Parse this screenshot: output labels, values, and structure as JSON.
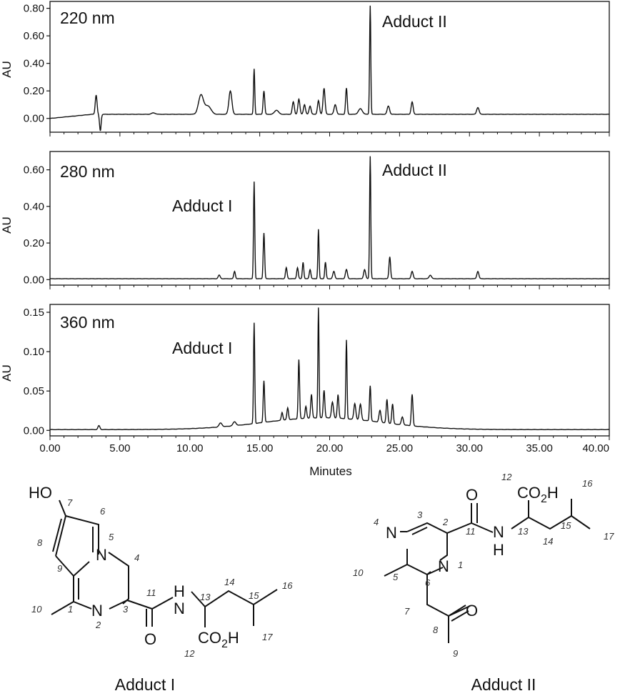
{
  "chart_data": [
    {
      "type": "line",
      "title": "220 nm",
      "ylabel": "AU",
      "xlabel": "",
      "xlim": [
        0,
        40
      ],
      "ylim": [
        -0.1,
        0.85
      ],
      "yticks": [
        "0.00",
        "0.20",
        "0.40",
        "0.60",
        "0.80"
      ],
      "ytick_values": [
        0,
        0.2,
        0.4,
        0.6,
        0.8
      ],
      "baseline": 0.03,
      "annotations": [
        {
          "text": "Adduct II",
          "x": 22.9
        }
      ],
      "peaks": [
        [
          3.3,
          0.14,
          0.09
        ],
        [
          3.6,
          -0.12,
          0.08
        ],
        [
          7.4,
          0.01,
          0.2
        ],
        [
          10.8,
          0.14,
          0.25
        ],
        [
          11.3,
          0.06,
          0.3
        ],
        [
          12.9,
          0.17,
          0.15
        ],
        [
          14.6,
          0.33,
          0.06
        ],
        [
          15.3,
          0.17,
          0.08
        ],
        [
          16.2,
          0.03,
          0.2
        ],
        [
          17.4,
          0.09,
          0.1
        ],
        [
          17.8,
          0.11,
          0.1
        ],
        [
          18.2,
          0.07,
          0.1
        ],
        [
          18.6,
          0.06,
          0.1
        ],
        [
          19.2,
          0.1,
          0.1
        ],
        [
          19.6,
          0.19,
          0.1
        ],
        [
          20.4,
          0.07,
          0.12
        ],
        [
          21.2,
          0.19,
          0.08
        ],
        [
          22.2,
          0.04,
          0.2
        ],
        [
          22.9,
          0.79,
          0.06
        ],
        [
          24.2,
          0.06,
          0.12
        ],
        [
          25.9,
          0.09,
          0.1
        ],
        [
          30.6,
          0.05,
          0.12
        ]
      ]
    },
    {
      "type": "line",
      "title": "280 nm",
      "ylabel": "AU",
      "xlabel": "",
      "xlim": [
        0,
        40
      ],
      "ylim": [
        -0.03,
        0.7
      ],
      "yticks": [
        "0.00",
        "0.20",
        "0.40",
        "0.60"
      ],
      "ytick_values": [
        0,
        0.2,
        0.4,
        0.6
      ],
      "baseline": 0.005,
      "annotations": [
        {
          "text": "Adduct I",
          "x": 14.6
        },
        {
          "text": "Adduct II",
          "x": 22.9
        }
      ],
      "peaks": [
        [
          12.1,
          0.02,
          0.1
        ],
        [
          13.2,
          0.04,
          0.08
        ],
        [
          14.6,
          0.53,
          0.06
        ],
        [
          15.3,
          0.25,
          0.07
        ],
        [
          16.9,
          0.06,
          0.08
        ],
        [
          17.7,
          0.06,
          0.08
        ],
        [
          18.1,
          0.09,
          0.07
        ],
        [
          18.6,
          0.05,
          0.08
        ],
        [
          19.2,
          0.27,
          0.06
        ],
        [
          19.7,
          0.09,
          0.07
        ],
        [
          20.3,
          0.04,
          0.1
        ],
        [
          21.2,
          0.05,
          0.1
        ],
        [
          22.5,
          0.05,
          0.1
        ],
        [
          22.9,
          0.67,
          0.06
        ],
        [
          24.3,
          0.12,
          0.08
        ],
        [
          25.9,
          0.04,
          0.1
        ],
        [
          27.2,
          0.02,
          0.12
        ],
        [
          30.6,
          0.04,
          0.1
        ]
      ]
    },
    {
      "type": "line",
      "title": "360 nm",
      "ylabel": "AU",
      "xlabel": "Minutes",
      "xlim": [
        0,
        40
      ],
      "ylim": [
        -0.007,
        0.16
      ],
      "yticks": [
        "0.00",
        "0.05",
        "0.10",
        "0.15"
      ],
      "ytick_values": [
        0,
        0.05,
        0.1,
        0.15
      ],
      "xticks": [
        "0.00",
        "5.00",
        "10.00",
        "15.00",
        "20.00",
        "25.00",
        "30.00",
        "35.00",
        "40.00"
      ],
      "xtick_values": [
        0,
        5,
        10,
        15,
        20,
        25,
        30,
        35,
        40
      ],
      "baseline": 0.001,
      "hump": {
        "center": 19.5,
        "height": 0.015,
        "width": 6
      },
      "annotations": [
        {
          "text": "Adduct I",
          "x": 14.6
        }
      ],
      "peaks": [
        [
          3.5,
          0.005,
          0.1
        ],
        [
          12.2,
          0.005,
          0.15
        ],
        [
          13.2,
          0.005,
          0.15
        ],
        [
          14.6,
          0.128,
          0.06
        ],
        [
          15.3,
          0.053,
          0.07
        ],
        [
          16.6,
          0.01,
          0.08
        ],
        [
          17.0,
          0.015,
          0.08
        ],
        [
          17.8,
          0.075,
          0.07
        ],
        [
          18.3,
          0.015,
          0.08
        ],
        [
          18.7,
          0.03,
          0.08
        ],
        [
          19.2,
          0.14,
          0.06
        ],
        [
          19.6,
          0.035,
          0.08
        ],
        [
          20.2,
          0.02,
          0.1
        ],
        [
          20.6,
          0.03,
          0.08
        ],
        [
          21.2,
          0.1,
          0.06
        ],
        [
          21.8,
          0.02,
          0.1
        ],
        [
          22.2,
          0.02,
          0.1
        ],
        [
          22.9,
          0.045,
          0.07
        ],
        [
          23.6,
          0.015,
          0.1
        ],
        [
          24.1,
          0.03,
          0.08
        ],
        [
          24.5,
          0.025,
          0.08
        ],
        [
          25.2,
          0.01,
          0.1
        ],
        [
          25.9,
          0.04,
          0.08
        ]
      ]
    }
  ],
  "structures": {
    "adduct1": {
      "caption": "Adduct I",
      "group_ho": "HO",
      "atom_n5": "N",
      "atom_n2": "N",
      "atom_h": "H",
      "atom_n_amide": "N",
      "atom_o": "O",
      "group_co2h": "CO",
      "group_co2h_sub": "2",
      "group_co2h_h": "H",
      "numbers": [
        "7",
        "6",
        "8",
        "5",
        "4",
        "9",
        "1",
        "10",
        "2",
        "3",
        "11",
        "13",
        "14",
        "15",
        "16",
        "17",
        "12"
      ]
    },
    "adduct2": {
      "caption": "Adduct II",
      "atom_n4": "N",
      "atom_n1": "N",
      "atom_o11": "O",
      "atom_nh_n": "N",
      "atom_nh_h": "H",
      "atom_o8": "O",
      "group_co2h": "CO",
      "group_co2h_sub": "2",
      "group_co2h_h": "H",
      "numbers": [
        "12",
        "16",
        "3",
        "2",
        "4",
        "11",
        "13",
        "15",
        "17",
        "14",
        "1",
        "10",
        "5",
        "6",
        "7",
        "8",
        "9"
      ]
    }
  }
}
